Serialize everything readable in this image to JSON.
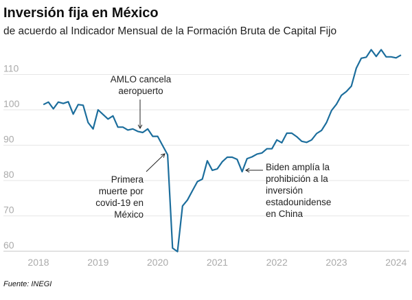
{
  "chart_data": {
    "type": "line",
    "title": "Inversión fija en México",
    "subtitle": "de acuerdo al Indicador Mensual de la Formación Bruta de Capital Fijo",
    "source": "Fuente: INEGI",
    "xlabel": "",
    "ylabel": "",
    "ylim": [
      60,
      117
    ],
    "yticks": [
      60,
      70,
      80,
      90,
      100,
      110
    ],
    "xticks": [
      "2018",
      "2019",
      "2020",
      "2021",
      "2022",
      "2023",
      "2024"
    ],
    "grid": true,
    "line_color": "#1b6d9c",
    "series": [
      {
        "start": "2018-02",
        "frequency": "monthly",
        "values": [
          101.5,
          102.2,
          100.3,
          102.2,
          101.8,
          102.3,
          98.8,
          101.5,
          101.3,
          96.4,
          94.6,
          100.0,
          98.7,
          97.4,
          98.3,
          95.1,
          95.1,
          94.3,
          94.6,
          93.9,
          93.6,
          94.6,
          92.5,
          92.5,
          89.9,
          87.3,
          60.9,
          59.9,
          72.8,
          74.5,
          77.1,
          79.7,
          80.4,
          85.6,
          82.9,
          83.3,
          85.3,
          86.6,
          86.6,
          86.0,
          82.5,
          86.2,
          86.7,
          87.5,
          87.8,
          89.0,
          89.0,
          91.5,
          90.7,
          93.4,
          93.4,
          92.4,
          91.1,
          90.8,
          91.5,
          93.3,
          94.2,
          96.4,
          99.8,
          101.6,
          104.1,
          105.2,
          106.7,
          111.8,
          114.6,
          114.9,
          117.0,
          115.1,
          117.0,
          115.0,
          115.0,
          114.7,
          115.5
        ]
      }
    ],
    "annotations": [
      {
        "lines": [
          "AMLO cancela",
          "aeropuerto"
        ],
        "x": "2019-10"
      },
      {
        "lines": [
          "Primera",
          "muerte por",
          "covid-19 en",
          "México"
        ],
        "x": "2020-03"
      },
      {
        "lines": [
          "Biden amplía la",
          "prohibición a la",
          "inversión",
          "estadounidense",
          "en China"
        ],
        "x": "2021-07"
      }
    ]
  }
}
